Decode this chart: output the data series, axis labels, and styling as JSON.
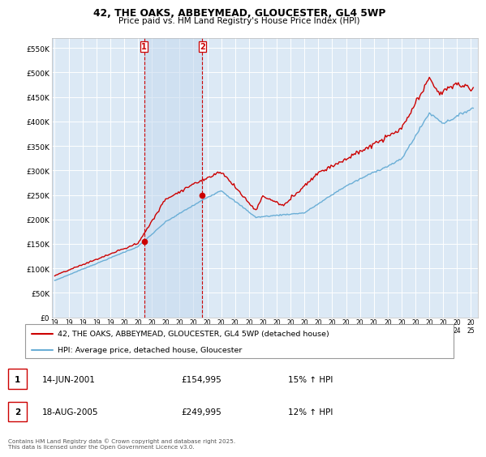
{
  "title_line1": "42, THE OAKS, ABBEYMEAD, GLOUCESTER, GL4 5WP",
  "title_line2": "Price paid vs. HM Land Registry's House Price Index (HPI)",
  "ylim": [
    0,
    570000
  ],
  "yticks": [
    0,
    50000,
    100000,
    150000,
    200000,
    250000,
    300000,
    350000,
    400000,
    450000,
    500000,
    550000
  ],
  "ytick_labels": [
    "£0",
    "£50K",
    "£100K",
    "£150K",
    "£200K",
    "£250K",
    "£300K",
    "£350K",
    "£400K",
    "£450K",
    "£500K",
    "£550K"
  ],
  "hpi_color": "#6aaed6",
  "price_color": "#cc0000",
  "vline_color": "#cc0000",
  "plot_bg_color": "#dce9f5",
  "grid_color": "#ffffff",
  "span_color": "#c5d9ef",
  "transaction1_date": 2001.45,
  "transaction1_price": 154995,
  "transaction2_date": 2005.63,
  "transaction2_price": 249995,
  "legend_label_price": "42, THE OAKS, ABBEYMEAD, GLOUCESTER, GL4 5WP (detached house)",
  "legend_label_hpi": "HPI: Average price, detached house, Gloucester",
  "table_entries": [
    {
      "num": "1",
      "date": "14-JUN-2001",
      "price": "£154,995",
      "hpi": "15% ↑ HPI"
    },
    {
      "num": "2",
      "date": "18-AUG-2005",
      "price": "£249,995",
      "hpi": "12% ↑ HPI"
    }
  ],
  "footer": "Contains HM Land Registry data © Crown copyright and database right 2025.\nThis data is licensed under the Open Government Licence v3.0.",
  "xtick_years": [
    1995,
    1996,
    1997,
    1998,
    1999,
    2000,
    2001,
    2002,
    2003,
    2004,
    2005,
    2006,
    2007,
    2008,
    2009,
    2010,
    2011,
    2012,
    2013,
    2014,
    2015,
    2016,
    2017,
    2018,
    2019,
    2020,
    2021,
    2022,
    2023,
    2024,
    2025
  ]
}
